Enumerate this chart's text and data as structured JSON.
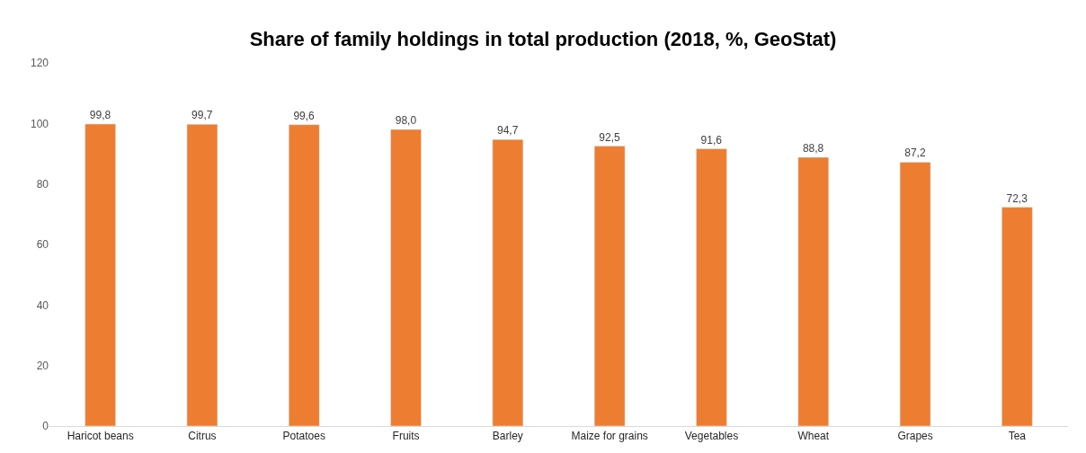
{
  "chart_data": {
    "type": "bar",
    "title": "Share of family holdings in total production (2018, %, GeoStat)",
    "categories": [
      "Haricot beans",
      "Citrus",
      "Potatoes",
      "Fruits",
      "Barley",
      "Maize for grains",
      "Vegetables",
      "Wheat",
      "Grapes",
      "Tea"
    ],
    "values": [
      99.8,
      99.7,
      99.6,
      98.0,
      94.7,
      92.5,
      91.6,
      88.8,
      87.2,
      72.3
    ],
    "value_labels": [
      "99,8",
      "99,7",
      "99,6",
      "98,0",
      "94,7",
      "92,5",
      "91,6",
      "88,8",
      "87,2",
      "72,3"
    ],
    "color": "#ed7d31",
    "ylim": [
      0,
      120
    ],
    "yticks": [
      0,
      20,
      40,
      60,
      80,
      100,
      120
    ]
  }
}
